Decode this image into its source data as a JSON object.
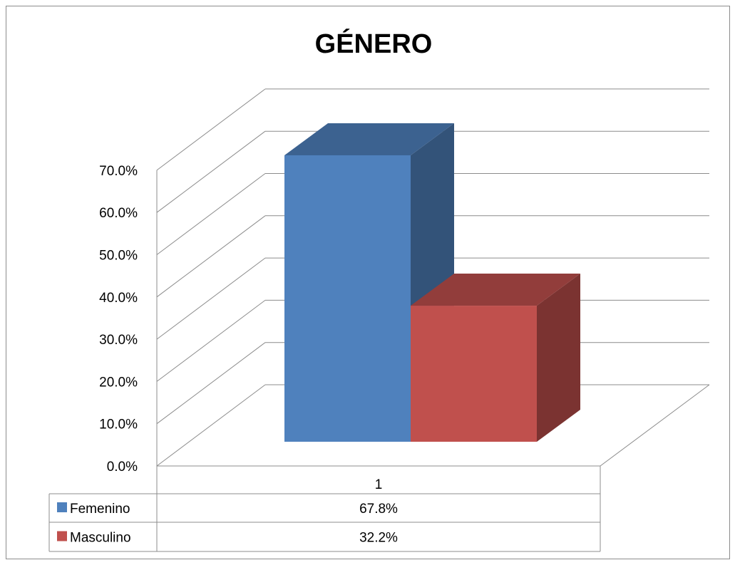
{
  "chart_data": {
    "type": "bar",
    "title": "GÉNERO",
    "categories": [
      "1"
    ],
    "series": [
      {
        "name": "Femenino",
        "values": [
          67.8
        ],
        "color": "#4F81BD"
      },
      {
        "name": "Masculino",
        "values": [
          32.2
        ],
        "color": "#C0504D"
      }
    ],
    "ylim": [
      0,
      70
    ],
    "y_ticks": [
      "0.0%",
      "10.0%",
      "20.0%",
      "30.0%",
      "40.0%",
      "50.0%",
      "60.0%",
      "70.0%"
    ],
    "grid": true,
    "style": "3d-column",
    "data_table": {
      "header": "1",
      "rows": [
        {
          "series": "Femenino",
          "value": "67.8%"
        },
        {
          "series": "Masculino",
          "value": "32.2%"
        }
      ]
    }
  }
}
